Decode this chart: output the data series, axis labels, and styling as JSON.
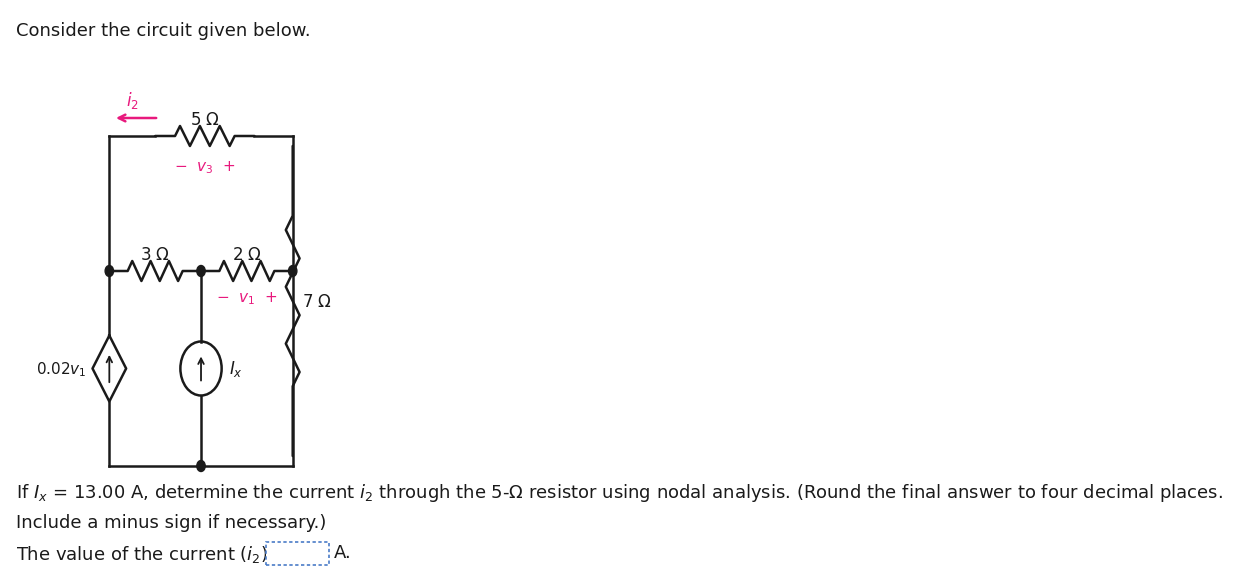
{
  "title": "Consider the circuit given below.",
  "title_fontsize": 13,
  "title_color": "#1a1a1a",
  "bg_color": "#ffffff",
  "circuit_color": "#1a1a1a",
  "pink_color": "#e8197d",
  "text_line1": "If $I_x$ = 13.00 A, determine the current $i_2$ through the 5-Ω resistor using nodal analysis. (Round the final answer to four decimal places.",
  "text_line2": "Include a minus sign if necessary.)",
  "text_line3": "The value of the current ($i_2$) is",
  "text_line3_end": "A.",
  "font_size_body": 13,
  "font_size_circuit": 12,
  "font_size_small": 11
}
